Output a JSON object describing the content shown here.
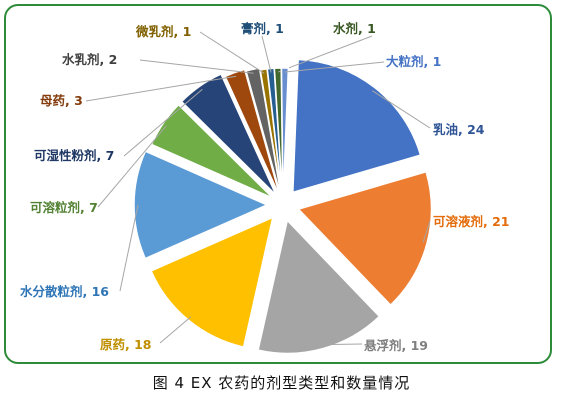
{
  "caption": "图 4 EX 农药的剂型类型和数量情况",
  "chart_data": {
    "type": "pie",
    "exploded": true,
    "categories": [
      "乳油",
      "可溶液剂",
      "悬浮剂",
      "原药",
      "水分散粒剂",
      "可溶粒剂",
      "可湿性粉剂",
      "母药",
      "水乳剂",
      "微乳剂",
      "膏剂",
      "水剂",
      "大粒剂"
    ],
    "values": [
      24,
      21,
      19,
      18,
      16,
      7,
      7,
      3,
      2,
      1,
      1,
      1,
      1
    ],
    "labels": [
      "乳油, 24",
      "可溶液剂, 21",
      "悬浮剂, 19",
      "原药, 18",
      "水分散粒剂, 16",
      "可溶粒剂, 7",
      "可湿性粉剂, 7",
      "母药, 3",
      "水乳剂, 2",
      "微乳剂, 1",
      "膏剂, 1",
      "水剂, 1",
      "大粒剂, 1"
    ],
    "colors": [
      "#4472c4",
      "#ed7d31",
      "#a5a5a5",
      "#ffc000",
      "#5b9bd5",
      "#70ad47",
      "#264478",
      "#9e480e",
      "#636363",
      "#997300",
      "#255e91",
      "#43682b",
      "#698ed0"
    ],
    "label_colors": [
      "#2f5597",
      "#e46c0a",
      "#7f7f7f",
      "#bf8f00",
      "#2e75b6",
      "#548235",
      "#1f3864",
      "#843c0c",
      "#404040",
      "#806000",
      "#1f4e79",
      "#385723",
      "#4472c4"
    ],
    "legend": "none"
  }
}
